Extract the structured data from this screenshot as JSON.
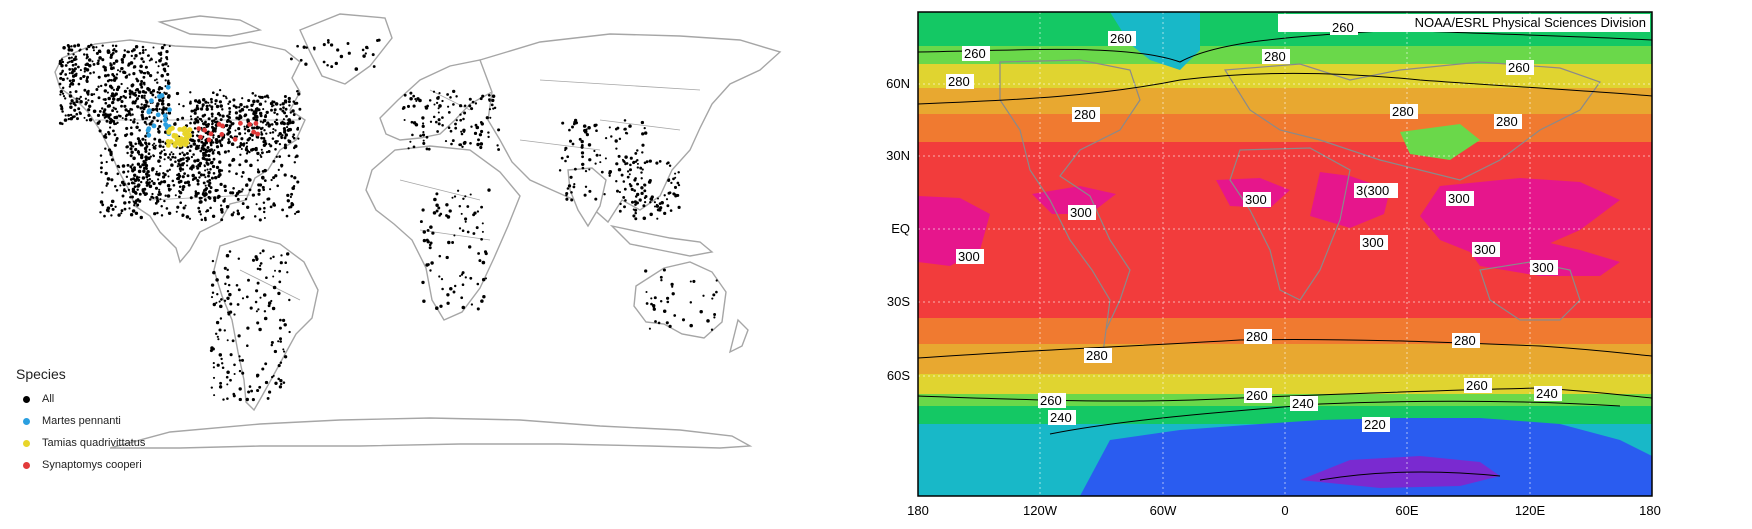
{
  "left_map": {
    "legend": {
      "title": "Species",
      "items": [
        {
          "label": "All",
          "color": "#000000"
        },
        {
          "label": "Martes pennanti",
          "color": "#2a9fe0"
        },
        {
          "label": "Tamias quadrivittatus",
          "color": "#e8d52a"
        },
        {
          "label": "Synaptomys cooperi",
          "color": "#e23a3a"
        }
      ]
    },
    "colors": {
      "land_outline": "#a6a6a6",
      "occurrence": "#000000"
    }
  },
  "right_map": {
    "credit": "NOAA/ESRL Physical Sciences Division",
    "lat_labels": [
      "60N",
      "30N",
      "EQ",
      "30S",
      "60S"
    ],
    "lon_labels": [
      "180",
      "120W",
      "60W",
      "0",
      "60E",
      "120E",
      "180"
    ],
    "contour_labels": [
      "260",
      "260",
      "260",
      "260",
      "280",
      "280",
      "280",
      "280",
      "280",
      "3(300",
      "300",
      "300",
      "300",
      "300",
      "300",
      "300",
      "300",
      "280",
      "280",
      "280",
      "260",
      "260",
      "260",
      "240",
      "240",
      "240",
      "220"
    ],
    "temperature_bands": [
      {
        "kelvin": 300,
        "color": "#e6168c"
      },
      {
        "kelvin": 295,
        "color": "#f23c3c"
      },
      {
        "kelvin": 285,
        "color": "#f07a30"
      },
      {
        "kelvin": 280,
        "color": "#e8a830"
      },
      {
        "kelvin": 275,
        "color": "#e0d430"
      },
      {
        "kelvin": 270,
        "color": "#b8e03a"
      },
      {
        "kelvin": 265,
        "color": "#6ad84a"
      },
      {
        "kelvin": 255,
        "color": "#14c864"
      },
      {
        "kelvin": 250,
        "color": "#18b8c8"
      },
      {
        "kelvin": 240,
        "color": "#2a5cf0"
      },
      {
        "kelvin": 225,
        "color": "#7a2ad0"
      }
    ]
  }
}
